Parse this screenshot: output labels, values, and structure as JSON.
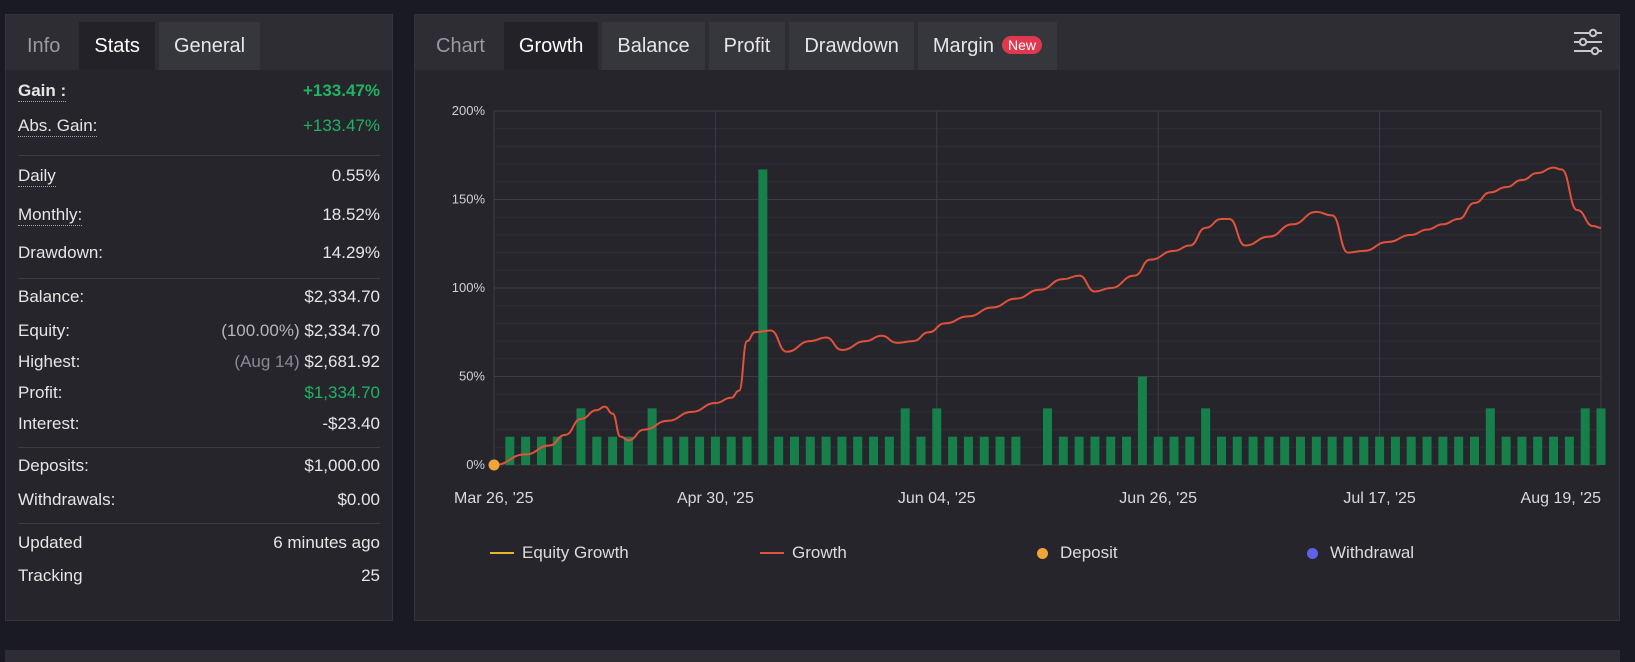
{
  "left": {
    "tabs": [
      "Info",
      "Stats",
      "General"
    ],
    "active_tab": "Stats",
    "stats": {
      "gain": {
        "label": "Gain :",
        "value": "+133.47%"
      },
      "abs_gain": {
        "label": "Abs. Gain:",
        "value": "+133.47%"
      },
      "daily": {
        "label": "Daily",
        "value": "0.55%"
      },
      "monthly": {
        "label": "Monthly:",
        "value": "18.52%"
      },
      "drawdown": {
        "label": "Drawdown:",
        "value": "14.29%"
      },
      "balance": {
        "label": "Balance:",
        "value": "$2,334.70"
      },
      "equity": {
        "label": "Equity:",
        "prefix": "(100.00%)",
        "value": "$2,334.70"
      },
      "highest": {
        "label": "Highest:",
        "prefix": "(Aug 14)",
        "value": "$2,681.92"
      },
      "profit": {
        "label": "Profit:",
        "value": "$1,334.70"
      },
      "interest": {
        "label": "Interest:",
        "value": "-$23.40"
      },
      "deposits": {
        "label": "Deposits:",
        "value": "$1,000.00"
      },
      "withdrawals": {
        "label": "Withdrawals:",
        "value": "$0.00"
      },
      "updated": {
        "label": "Updated",
        "value": "6 minutes ago"
      },
      "tracking": {
        "label": "Tracking",
        "value": "25"
      }
    }
  },
  "right": {
    "tabs": [
      "Chart",
      "Growth",
      "Balance",
      "Profit",
      "Drawdown",
      "Margin"
    ],
    "active_tab": "Growth",
    "new_badge": "New",
    "settings_icon": "sliders-icon"
  },
  "colors": {
    "growth_line": "#e0523c",
    "equity_line": "#e8b62c",
    "deposit_dot": "#f0a43a",
    "withdrawal_dot": "#6060e8",
    "bar": "#17804a",
    "positive": "#1fb463"
  },
  "chart_data": {
    "type": "line",
    "y_tick_labels": [
      "0%",
      "50%",
      "100%",
      "150%",
      "200%"
    ],
    "ylim": [
      0,
      200
    ],
    "x_tick_labels": [
      "Mar 26, '25",
      "Apr 30, '25",
      "Jun 04, '25",
      "Jun 26, '25",
      "Jul 17, '25",
      "Aug 19, '25"
    ],
    "grid": true,
    "legend_placement": "bottom",
    "series": [
      {
        "name": "Growth",
        "points": [
          [
            0,
            0
          ],
          [
            4,
            6
          ],
          [
            7,
            11
          ],
          [
            9,
            17
          ],
          [
            11,
            26
          ],
          [
            13,
            31
          ],
          [
            14,
            33
          ],
          [
            15,
            29
          ],
          [
            16,
            16
          ],
          [
            17,
            14
          ],
          [
            19,
            20
          ],
          [
            22,
            25
          ],
          [
            25,
            30
          ],
          [
            28,
            35
          ],
          [
            30,
            38
          ],
          [
            31,
            42
          ],
          [
            32,
            70
          ],
          [
            33,
            75
          ],
          [
            35,
            76
          ],
          [
            37,
            64
          ],
          [
            40,
            70
          ],
          [
            42,
            72
          ],
          [
            44,
            65
          ],
          [
            47,
            70
          ],
          [
            49,
            73
          ],
          [
            51,
            69
          ],
          [
            53,
            70
          ],
          [
            55,
            75
          ],
          [
            57,
            80
          ],
          [
            60,
            84
          ],
          [
            63,
            89
          ],
          [
            66,
            94
          ],
          [
            69,
            99
          ],
          [
            72,
            105
          ],
          [
            74,
            107
          ],
          [
            76,
            98
          ],
          [
            78,
            100
          ],
          [
            81,
            107
          ],
          [
            83,
            116
          ],
          [
            86,
            121
          ],
          [
            88,
            124
          ],
          [
            90,
            134
          ],
          [
            92,
            139
          ],
          [
            93,
            139
          ],
          [
            95,
            124
          ],
          [
            98,
            129
          ],
          [
            101,
            136
          ],
          [
            104,
            143
          ],
          [
            106,
            141
          ],
          [
            108,
            120
          ],
          [
            110,
            121
          ],
          [
            113,
            126
          ],
          [
            116,
            130
          ],
          [
            118,
            133
          ],
          [
            120,
            136
          ],
          [
            122,
            139
          ],
          [
            124,
            148
          ],
          [
            126,
            154
          ],
          [
            128,
            157
          ],
          [
            130,
            161
          ],
          [
            132,
            165
          ],
          [
            134,
            168
          ],
          [
            135,
            167
          ],
          [
            137,
            144
          ],
          [
            139,
            135
          ],
          [
            140,
            134
          ]
        ]
      },
      {
        "name": "Equity Growth",
        "points": []
      }
    ],
    "bars": [
      {
        "x": 2,
        "v": 16
      },
      {
        "x": 4,
        "v": 16
      },
      {
        "x": 6,
        "v": 16
      },
      {
        "x": 8,
        "v": 16
      },
      {
        "x": 11,
        "v": 32
      },
      {
        "x": 13,
        "v": 16
      },
      {
        "x": 15,
        "v": 16
      },
      {
        "x": 17,
        "v": 16
      },
      {
        "x": 20,
        "v": 32
      },
      {
        "x": 22,
        "v": 16
      },
      {
        "x": 24,
        "v": 16
      },
      {
        "x": 26,
        "v": 16
      },
      {
        "x": 28,
        "v": 16
      },
      {
        "x": 30,
        "v": 16
      },
      {
        "x": 32,
        "v": 16
      },
      {
        "x": 34,
        "v": 167
      },
      {
        "x": 36,
        "v": 16
      },
      {
        "x": 38,
        "v": 16
      },
      {
        "x": 40,
        "v": 16
      },
      {
        "x": 42,
        "v": 16
      },
      {
        "x": 44,
        "v": 16
      },
      {
        "x": 46,
        "v": 16
      },
      {
        "x": 48,
        "v": 16
      },
      {
        "x": 50,
        "v": 16
      },
      {
        "x": 52,
        "v": 32
      },
      {
        "x": 54,
        "v": 16
      },
      {
        "x": 56,
        "v": 32
      },
      {
        "x": 58,
        "v": 16
      },
      {
        "x": 60,
        "v": 16
      },
      {
        "x": 62,
        "v": 16
      },
      {
        "x": 64,
        "v": 16
      },
      {
        "x": 66,
        "v": 16
      },
      {
        "x": 70,
        "v": 32
      },
      {
        "x": 72,
        "v": 16
      },
      {
        "x": 74,
        "v": 16
      },
      {
        "x": 76,
        "v": 16
      },
      {
        "x": 78,
        "v": 16
      },
      {
        "x": 80,
        "v": 16
      },
      {
        "x": 82,
        "v": 50
      },
      {
        "x": 84,
        "v": 16
      },
      {
        "x": 86,
        "v": 16
      },
      {
        "x": 88,
        "v": 16
      },
      {
        "x": 90,
        "v": 32
      },
      {
        "x": 92,
        "v": 16
      },
      {
        "x": 94,
        "v": 16
      },
      {
        "x": 96,
        "v": 16
      },
      {
        "x": 98,
        "v": 16
      },
      {
        "x": 100,
        "v": 16
      },
      {
        "x": 102,
        "v": 16
      },
      {
        "x": 104,
        "v": 16
      },
      {
        "x": 106,
        "v": 16
      },
      {
        "x": 108,
        "v": 16
      },
      {
        "x": 110,
        "v": 16
      },
      {
        "x": 112,
        "v": 16
      },
      {
        "x": 114,
        "v": 16
      },
      {
        "x": 116,
        "v": 16
      },
      {
        "x": 118,
        "v": 16
      },
      {
        "x": 120,
        "v": 16
      },
      {
        "x": 122,
        "v": 16
      },
      {
        "x": 124,
        "v": 16
      },
      {
        "x": 126,
        "v": 32
      },
      {
        "x": 128,
        "v": 16
      },
      {
        "x": 130,
        "v": 16
      },
      {
        "x": 132,
        "v": 16
      },
      {
        "x": 134,
        "v": 16
      },
      {
        "x": 136,
        "v": 16
      },
      {
        "x": 138,
        "v": 32
      },
      {
        "x": 140,
        "v": 32
      }
    ],
    "deposit_points": [
      [
        0,
        0
      ]
    ],
    "legend": [
      "Equity Growth",
      "Growth",
      "Deposit",
      "Withdrawal"
    ]
  }
}
